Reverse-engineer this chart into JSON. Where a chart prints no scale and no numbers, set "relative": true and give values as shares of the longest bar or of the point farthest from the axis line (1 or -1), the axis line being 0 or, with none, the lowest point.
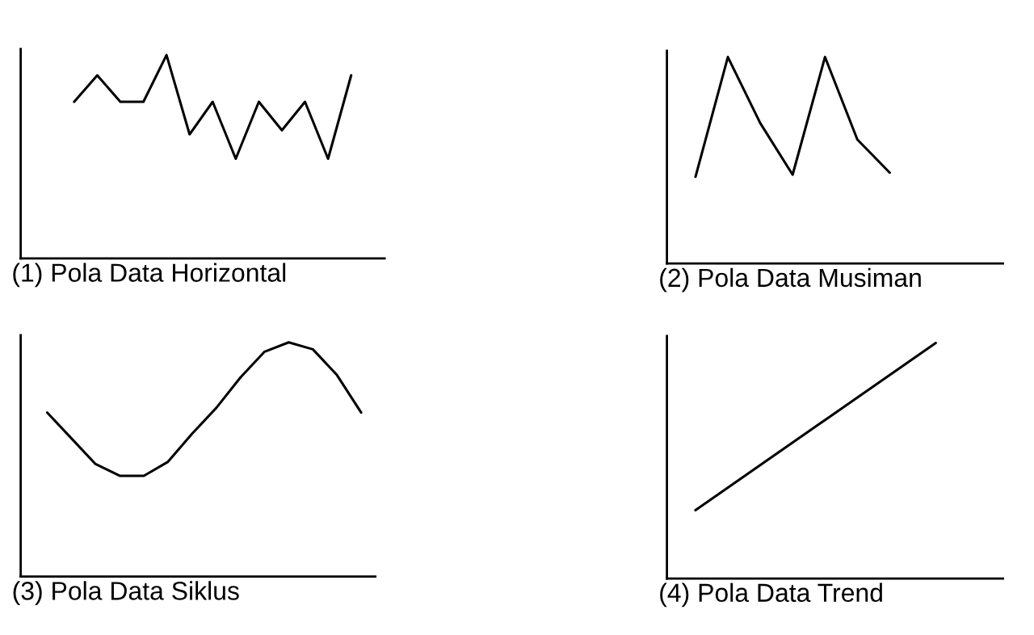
{
  "chart_data": [
    {
      "type": "line",
      "relative": true,
      "xlabel": "(1) Pola Data Horizontal",
      "categories": [
        null,
        null,
        null,
        null,
        null,
        null,
        null,
        null,
        null,
        null,
        null,
        null,
        null
      ],
      "series": [
        {
          "color": "#000000",
          "values": [
            0.77,
            0.9,
            0.77,
            0.77,
            1,
            0.61,
            0.77,
            0.49,
            0.77,
            0.63,
            0.77,
            0.49,
            0.9
          ]
        }
      ]
    },
    {
      "type": "line",
      "relative": true,
      "xlabel": "(2) Pola Data Musiman",
      "categories": [
        null,
        null,
        null,
        null,
        null,
        null,
        null
      ],
      "series": [
        {
          "color": "#000000",
          "values": [
            0.42,
            1,
            0.68,
            0.43,
            1,
            0.6,
            0.44
          ]
        }
      ]
    },
    {
      "type": "line",
      "relative": true,
      "xlabel": "(3) Pola Data Siklus",
      "categories": [
        null,
        null,
        null,
        null,
        null,
        null,
        null,
        null,
        null,
        null,
        null,
        null,
        null,
        null
      ],
      "series": [
        {
          "color": "#000000",
          "values": [
            0.7,
            0.59,
            0.48,
            0.43,
            0.43,
            0.49,
            0.61,
            0.72,
            0.85,
            0.96,
            1,
            0.97,
            0.86,
            0.7
          ]
        }
      ]
    },
    {
      "type": "line",
      "relative": true,
      "xlabel": "(4) Pola Data Trend",
      "categories": [
        null,
        null
      ],
      "series": [
        {
          "color": "#000000",
          "values": [
            0.29,
            1
          ]
        }
      ]
    }
  ]
}
